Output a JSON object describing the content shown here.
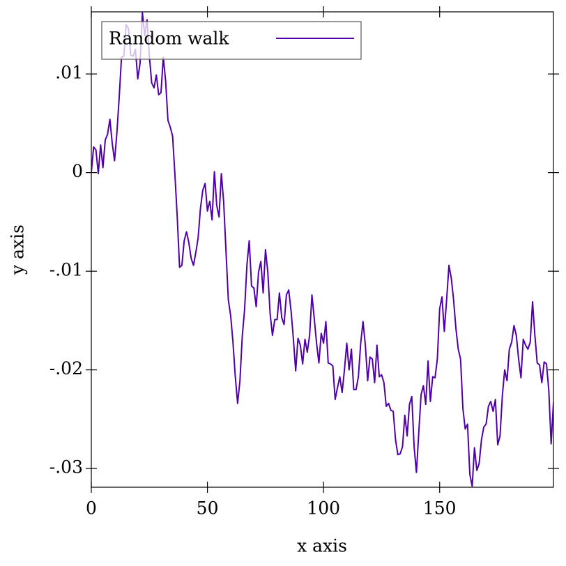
{
  "chart_data": {
    "type": "line",
    "x_label": "x axis",
    "y_label": "y axis",
    "x": [
      0,
      1,
      2,
      3,
      4,
      5,
      6,
      7,
      8,
      9,
      10,
      11,
      12,
      13,
      14,
      15,
      16,
      17,
      18,
      19,
      20,
      21,
      22,
      23,
      24,
      25,
      26,
      27,
      28,
      29,
      30,
      31,
      32,
      33,
      34,
      35,
      36,
      37,
      38,
      39,
      40,
      41,
      42,
      43,
      44,
      45,
      46,
      47,
      48,
      49,
      50,
      51,
      52,
      53,
      54,
      55,
      56,
      57,
      58,
      59,
      60,
      61,
      62,
      63,
      64,
      65,
      66,
      67,
      68,
      69,
      70,
      71,
      72,
      73,
      74,
      75,
      76,
      77,
      78,
      79,
      80,
      81,
      82,
      83,
      84,
      85,
      86,
      87,
      88,
      89,
      90,
      91,
      92,
      93,
      94,
      95,
      96,
      97,
      98,
      99,
      100,
      101,
      102,
      103,
      104,
      105,
      106,
      107,
      108,
      109,
      110,
      111,
      112,
      113,
      114,
      115,
      116,
      117,
      118,
      119,
      120,
      121,
      122,
      123,
      124,
      125,
      126,
      127,
      128,
      129,
      130,
      131,
      132,
      133,
      134,
      135,
      136,
      137,
      138,
      139,
      140,
      141,
      142,
      143,
      144,
      145,
      146,
      147,
      148,
      149,
      150,
      151,
      152,
      153,
      154,
      155,
      156,
      157,
      158,
      159,
      160,
      161,
      162,
      163,
      164,
      165,
      166,
      167,
      168,
      169,
      170,
      171,
      172,
      173,
      174,
      175,
      176,
      177,
      178,
      179,
      180,
      181,
      182,
      183,
      184,
      185,
      186,
      187,
      188,
      189,
      190,
      191,
      192,
      193,
      194,
      195,
      196,
      197,
      198,
      199
    ],
    "series": [
      {
        "name": "Random walk",
        "color": "#5000a8",
        "values": [
          0,
          0.0026,
          0.0023,
          -0.0001,
          0.0028,
          0.0005,
          0.0033,
          0.0039,
          0.0054,
          0.003,
          0.0012,
          0.004,
          0.0076,
          0.0117,
          0.0118,
          0.015,
          0.0146,
          0.0119,
          0.0118,
          0.0125,
          0.0095,
          0.0111,
          0.0162,
          0.0139,
          0.0155,
          0.0118,
          0.0091,
          0.0086,
          0.0099,
          0.0079,
          0.0081,
          0.0117,
          0.0093,
          0.0053,
          0.0046,
          0.0037,
          -0.0002,
          -0.0045,
          -0.0096,
          -0.0094,
          -0.0069,
          -0.006,
          -0.0071,
          -0.0087,
          -0.0094,
          -0.0081,
          -0.0066,
          -0.0036,
          -0.0018,
          -0.0011,
          -0.0039,
          -0.0029,
          -0.0048,
          0.0001,
          -0.0033,
          -0.0045,
          -0.0001,
          -0.003,
          -0.008,
          -0.0129,
          -0.0145,
          -0.0172,
          -0.0207,
          -0.0234,
          -0.0211,
          -0.0166,
          -0.0139,
          -0.0094,
          -0.0069,
          -0.0115,
          -0.0117,
          -0.0136,
          -0.0101,
          -0.009,
          -0.0122,
          -0.0078,
          -0.0101,
          -0.0143,
          -0.0165,
          -0.0149,
          -0.0149,
          -0.0122,
          -0.0147,
          -0.0154,
          -0.0124,
          -0.0119,
          -0.014,
          -0.0168,
          -0.0201,
          -0.0168,
          -0.0175,
          -0.0194,
          -0.0169,
          -0.0182,
          -0.0165,
          -0.0124,
          -0.0148,
          -0.0173,
          -0.0193,
          -0.0163,
          -0.0173,
          -0.0151,
          -0.0193,
          -0.0194,
          -0.0196,
          -0.023,
          -0.0218,
          -0.0207,
          -0.0223,
          -0.02,
          -0.0173,
          -0.02,
          -0.0179,
          -0.022,
          -0.022,
          -0.0207,
          -0.0173,
          -0.0151,
          -0.0175,
          -0.0211,
          -0.0187,
          -0.0189,
          -0.0213,
          -0.0175,
          -0.0207,
          -0.0205,
          -0.0213,
          -0.0237,
          -0.0234,
          -0.0241,
          -0.0242,
          -0.0271,
          -0.0286,
          -0.0285,
          -0.0278,
          -0.0246,
          -0.0267,
          -0.0235,
          -0.0227,
          -0.0278,
          -0.0304,
          -0.0264,
          -0.0225,
          -0.0216,
          -0.0235,
          -0.0191,
          -0.0232,
          -0.0207,
          -0.0208,
          -0.0189,
          -0.0138,
          -0.0126,
          -0.0161,
          -0.0129,
          -0.0094,
          -0.0107,
          -0.0129,
          -0.0158,
          -0.0179,
          -0.0189,
          -0.0239,
          -0.026,
          -0.0255,
          -0.0306,
          -0.0318,
          -0.0279,
          -0.0302,
          -0.0295,
          -0.0271,
          -0.0258,
          -0.0255,
          -0.0237,
          -0.0232,
          -0.0242,
          -0.023,
          -0.0276,
          -0.0267,
          -0.0226,
          -0.02,
          -0.0211,
          -0.0179,
          -0.0172,
          -0.0155,
          -0.0165,
          -0.0189,
          -0.0208,
          -0.0169,
          -0.0175,
          -0.0179,
          -0.0172,
          -0.0131,
          -0.0165,
          -0.0193,
          -0.0195,
          -0.0213,
          -0.0192,
          -0.0194,
          -0.0221,
          -0.0275,
          -0.0233
        ]
      }
    ],
    "xlim": [
      0,
      199
    ],
    "ylim": [
      -0.0319,
      0.0163
    ],
    "xticks": [
      0,
      50,
      100,
      150
    ],
    "yticks": [
      {
        "value": -0.03,
        "label": "-.03"
      },
      {
        "value": -0.02,
        "label": "-.02"
      },
      {
        "value": -0.01,
        "label": "-.01"
      },
      0,
      {
        "value": 0.01,
        "label": ".01"
      }
    ],
    "legend": "top-left"
  }
}
